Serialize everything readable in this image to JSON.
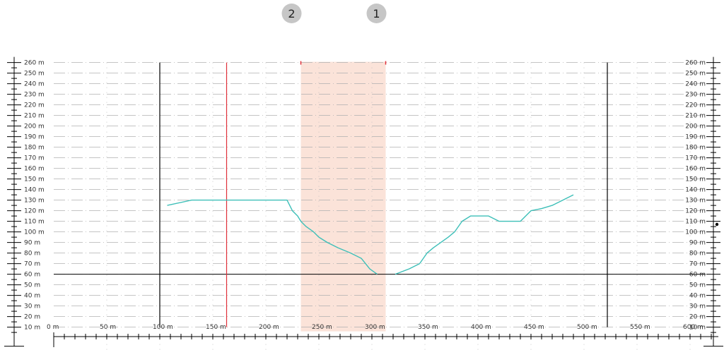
{
  "chart_data": {
    "type": "line",
    "title": "",
    "xlabel": "",
    "ylabel": "",
    "xlim": [
      0,
      620
    ],
    "ylim": [
      0,
      265
    ],
    "x_ticks": [
      0,
      50,
      100,
      150,
      200,
      250,
      300,
      350,
      400,
      450,
      500,
      550,
      600
    ],
    "x_tick_labels": [
      "0 m",
      "50 m",
      "100 m",
      "150 m",
      "200 m",
      "250 m",
      "300 m",
      "350 m",
      "400 m",
      "450 m",
      "500 m",
      "550 m",
      "600 m"
    ],
    "y_ticks": [
      10,
      20,
      30,
      40,
      50,
      60,
      70,
      80,
      90,
      100,
      110,
      120,
      130,
      140,
      150,
      160,
      170,
      180,
      190,
      200,
      210,
      220,
      230,
      240,
      250,
      260
    ],
    "y_tick_labels": [
      "10 m",
      "20 m",
      "30 m",
      "40 m",
      "50 m",
      "60 m",
      "70 m",
      "80 m",
      "90 m",
      "100 m",
      "110 m",
      "120 m",
      "130 m",
      "140 m",
      "150 m",
      "160 m",
      "170 m",
      "180 m",
      "190 m",
      "200 m",
      "210 m",
      "220 m",
      "230 m",
      "240 m",
      "250 m",
      "260 m"
    ],
    "grid": true,
    "baseline_y": 60,
    "series": [
      {
        "color": "#3dbfb8",
        "segments": [
          {
            "x": [
              107,
              130,
              160,
              190,
              220,
              225,
              230,
              233,
              238,
              245,
              250,
              258,
              268,
              280,
              290,
              298,
              305
            ],
            "y": [
              125,
              130,
              130,
              130,
              130,
              120,
              115,
              110,
              105,
              100,
              95,
              90,
              85,
              80,
              75,
              65,
              60
            ]
          },
          {
            "x": [
              322,
              335,
              345,
              352,
              358,
              365,
              372,
              378,
              385,
              393,
              400,
              410,
              420,
              430,
              440,
              450,
              460,
              470,
              480,
              490
            ],
            "y": [
              60,
              65,
              70,
              80,
              85,
              90,
              95,
              100,
              110,
              115,
              115,
              115,
              110,
              110,
              110,
              120,
              122,
              125,
              130,
              135
            ]
          }
        ]
      }
    ],
    "vertical_lines": [
      {
        "x": 100,
        "color": "#000000",
        "y_from": 10,
        "y_to": 260
      },
      {
        "x": 163,
        "color": "#e0303a",
        "y_from": 10,
        "y_to": 260
      },
      {
        "x": 522,
        "color": "#000000",
        "y_from": 10,
        "y_to": 260
      }
    ],
    "highlight_range": {
      "x_from": 233,
      "x_to": 313,
      "color": "#fbe3d9"
    },
    "markers": [
      {
        "label": "2",
        "x": 233
      },
      {
        "label": "1",
        "x": 313
      }
    ],
    "colors": {
      "grid_dash": "#b0b0b0",
      "grid_dot": "#bcbcbc",
      "axis": "#000000",
      "marker_badge": "#c6c6c6",
      "marker_tick": "#e0303a"
    }
  }
}
